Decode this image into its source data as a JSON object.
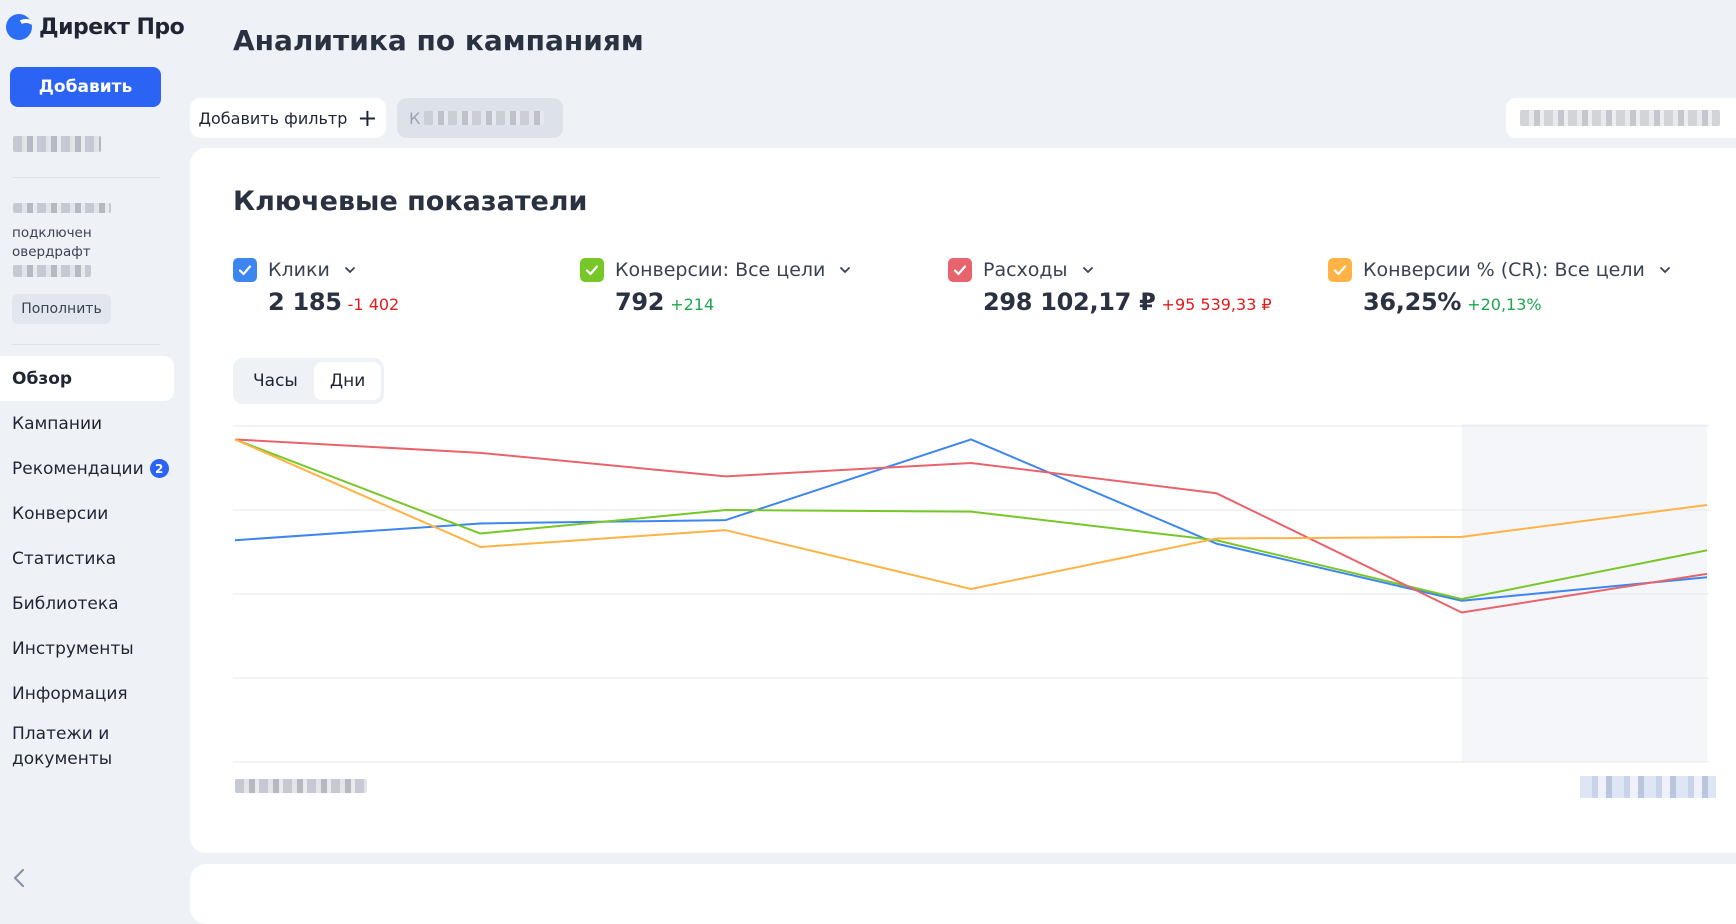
{
  "brand": {
    "name": "Директ Про",
    "logo_icon": "yandex-logo-icon"
  },
  "sidebar": {
    "add_label": "Добавить",
    "account_status": "подключен\nовердрафт",
    "topup_label": "Пополнить",
    "items": [
      {
        "label": "Обзор",
        "active": true
      },
      {
        "label": "Кампании"
      },
      {
        "label": "Рекомендации",
        "badge": "2"
      },
      {
        "label": "Конверсии"
      },
      {
        "label": "Статистика"
      },
      {
        "label": "Библиотека"
      },
      {
        "label": "Инструменты"
      },
      {
        "label": "Информация"
      },
      {
        "label": "Платежи и\nдокументы"
      }
    ],
    "collapse_icon": "chevron-left-icon"
  },
  "header": {
    "title": "Аналитика по кампаниям"
  },
  "filters": {
    "add_filter_label": "Добавить фильтр",
    "chip_prefix": "К"
  },
  "card": {
    "title": "Ключевые показатели",
    "metrics": [
      {
        "label": "Клики",
        "value": "2 185",
        "delta": "-1 402",
        "delta_type": "neg",
        "color": "#3d86f0"
      },
      {
        "label": "Конверсии: Все цели",
        "value": "792",
        "delta": "+214",
        "delta_type": "pos",
        "color": "#77c728"
      },
      {
        "label": "Расходы",
        "value": "298 102,17 ₽",
        "delta": "+95 539,33 ₽",
        "delta_type": "neg",
        "color": "#e8646c"
      },
      {
        "label": "Конверсии % (CR): Все цели",
        "value": "36,25%",
        "delta": "+20,13%",
        "delta_type": "pos",
        "color": "#ffb347"
      }
    ],
    "granularity": {
      "options": [
        "Часы",
        "Дни"
      ],
      "selected": "Дни"
    }
  },
  "chart_data": {
    "type": "line",
    "x": [
      1,
      2,
      3,
      4,
      5,
      6,
      7
    ],
    "normalized": true,
    "ylim": [
      0,
      1
    ],
    "grid": true,
    "highlight_last_interval": true,
    "series": [
      {
        "name": "Клики",
        "color": "#3d86f0",
        "values": [
          0.66,
          0.71,
          0.72,
          0.96,
          0.65,
          0.48,
          0.55
        ]
      },
      {
        "name": "Конверсии: Все цели",
        "color": "#77c728",
        "values": [
          0.96,
          0.68,
          0.75,
          0.745,
          0.66,
          0.485,
          0.63
        ]
      },
      {
        "name": "Расходы",
        "color": "#e8646c",
        "values": [
          0.96,
          0.92,
          0.85,
          0.89,
          0.8,
          0.445,
          0.56
        ]
      },
      {
        "name": "Конверсии % (CR): Все цели",
        "color": "#ffb347",
        "values": [
          0.96,
          0.64,
          0.69,
          0.515,
          0.665,
          0.67,
          0.765
        ]
      }
    ]
  }
}
